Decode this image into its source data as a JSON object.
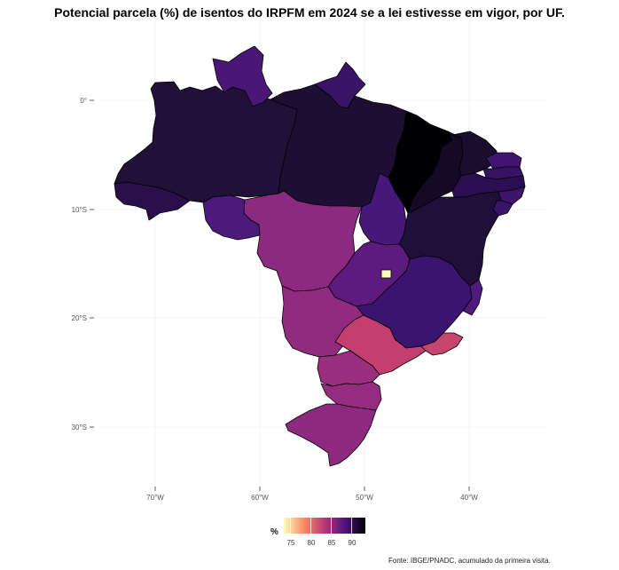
{
  "title": "Potencial parcela (%) de isentos do IRPFM em 2024 se a lei estivesse em vigor, por UF.",
  "axes": {
    "y_ticks": [
      "0°",
      "10°S",
      "20°S",
      "30°S"
    ],
    "x_ticks": [
      "70°W",
      "60°W",
      "50°W",
      "40°W"
    ]
  },
  "legend": {
    "title": "%",
    "ticks": [
      "75",
      "80",
      "85",
      "90"
    ],
    "colors": [
      "#fcfdbf",
      "#fc8961",
      "#b73779",
      "#51127c",
      "#000004"
    ]
  },
  "source": "Fonte: IBGE/PNADC, acumulado da primeira visita.",
  "map": {
    "projection": "lon/lat",
    "lon_range": [
      -75,
      -33
    ],
    "lat_range": [
      5.5,
      -34
    ],
    "states": [
      {
        "uf": "AC",
        "color": "#2a0f4a"
      },
      {
        "uf": "AM",
        "color": "#211038"
      },
      {
        "uf": "RR",
        "color": "#4a1778"
      },
      {
        "uf": "AP",
        "color": "#3a1266"
      },
      {
        "uf": "PA",
        "color": "#1f0e33"
      },
      {
        "uf": "RO",
        "color": "#4b1a7a"
      },
      {
        "uf": "MT",
        "color": "#8c2a82"
      },
      {
        "uf": "TO",
        "color": "#471779"
      },
      {
        "uf": "MA",
        "color": "#000004"
      },
      {
        "uf": "PI",
        "color": "#140a26"
      },
      {
        "uf": "CE",
        "color": "#1a0d2e"
      },
      {
        "uf": "RN",
        "color": "#3f1570"
      },
      {
        "uf": "PB",
        "color": "#351262"
      },
      {
        "uf": "PE",
        "color": "#2c0f52"
      },
      {
        "uf": "AL",
        "color": "#3c1469"
      },
      {
        "uf": "SE",
        "color": "#3a146a"
      },
      {
        "uf": "BA",
        "color": "#200f38"
      },
      {
        "uf": "GO",
        "color": "#5e1b7f"
      },
      {
        "uf": "DF",
        "color": "#fcfdbf"
      },
      {
        "uf": "MG",
        "color": "#3b1470"
      },
      {
        "uf": "ES",
        "color": "#4f1a7c"
      },
      {
        "uf": "MS",
        "color": "#912b80"
      },
      {
        "uf": "SP",
        "color": "#c53e70"
      },
      {
        "uf": "RJ",
        "color": "#c7466e"
      },
      {
        "uf": "PR",
        "color": "#9b2e7f"
      },
      {
        "uf": "SC",
        "color": "#952c80"
      },
      {
        "uf": "RS",
        "color": "#8d2a80"
      }
    ]
  }
}
